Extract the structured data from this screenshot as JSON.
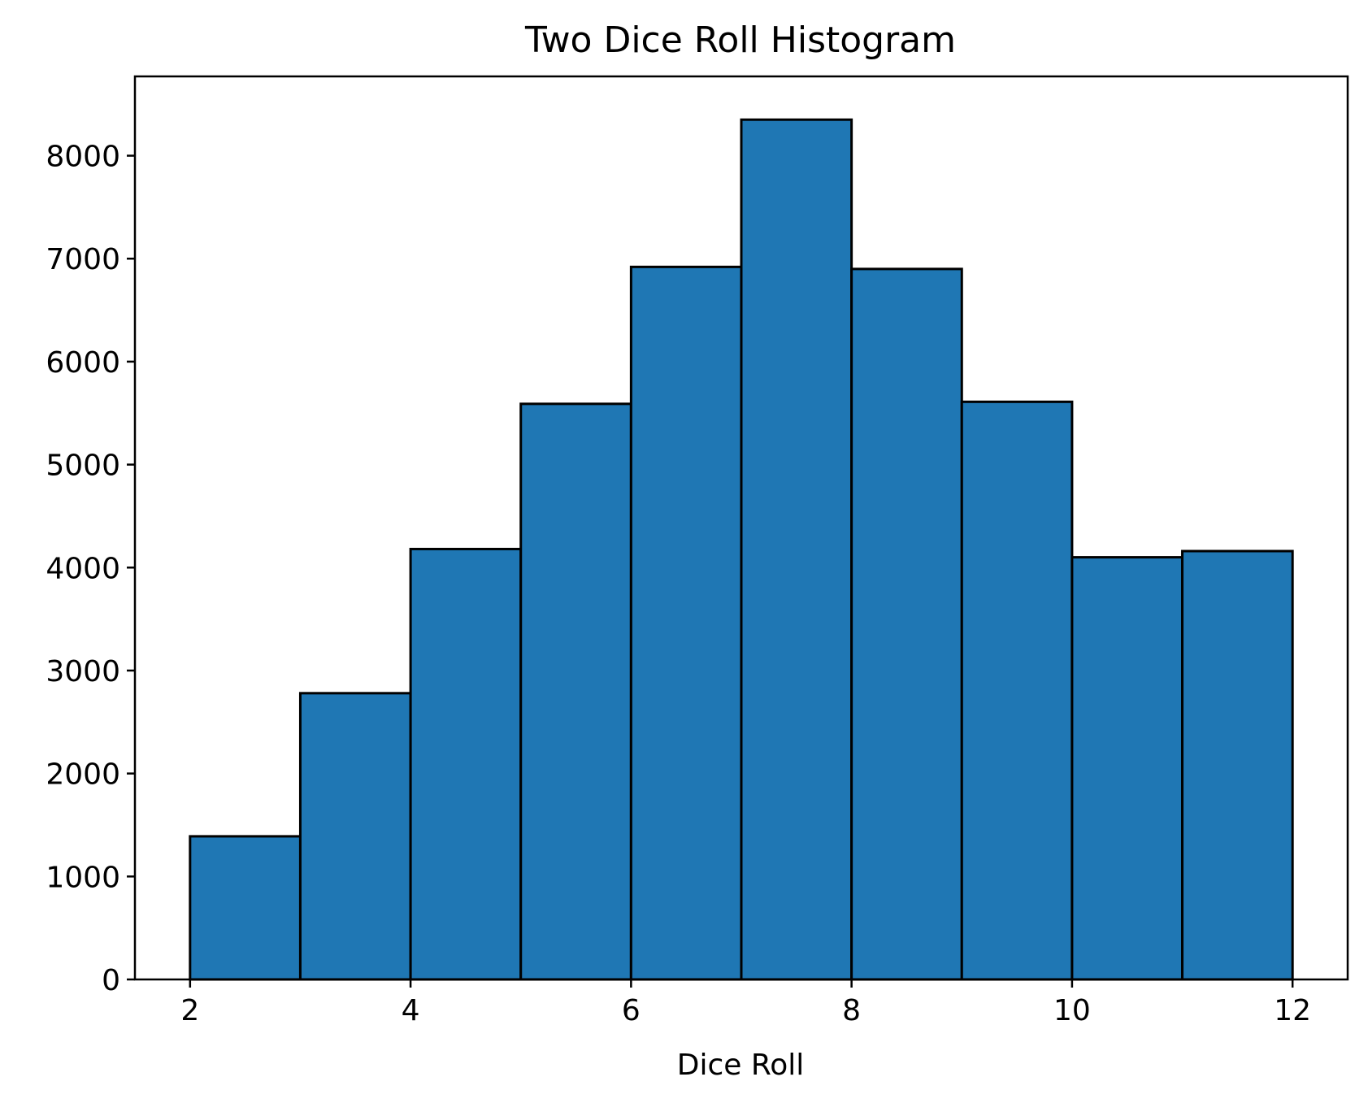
{
  "chart_data": {
    "type": "bar",
    "title": "Two Dice Roll Histogram",
    "xlabel": "Dice Roll",
    "ylabel": "",
    "bins": [
      {
        "x0": 2,
        "x1": 3,
        "count": 1390
      },
      {
        "x0": 3,
        "x1": 4,
        "count": 2780
      },
      {
        "x0": 4,
        "x1": 5,
        "count": 4180
      },
      {
        "x0": 5,
        "x1": 6,
        "count": 5590
      },
      {
        "x0": 6,
        "x1": 7,
        "count": 6920
      },
      {
        "x0": 7,
        "x1": 8,
        "count": 8350
      },
      {
        "x0": 8,
        "x1": 9,
        "count": 6900
      },
      {
        "x0": 9,
        "x1": 10,
        "count": 5610
      },
      {
        "x0": 10,
        "x1": 11,
        "count": 4100
      },
      {
        "x0": 11,
        "x1": 12,
        "count": 4160
      }
    ],
    "xlim": [
      1.5,
      12.5
    ],
    "ylim": [
      0,
      8770
    ],
    "xticks": [
      2,
      4,
      6,
      8,
      10,
      12
    ],
    "yticks": [
      0,
      1000,
      2000,
      3000,
      4000,
      5000,
      6000,
      7000,
      8000
    ],
    "bar_color": "#1f77b4",
    "edge_color": "#000000",
    "grid": false,
    "legend": false
  }
}
